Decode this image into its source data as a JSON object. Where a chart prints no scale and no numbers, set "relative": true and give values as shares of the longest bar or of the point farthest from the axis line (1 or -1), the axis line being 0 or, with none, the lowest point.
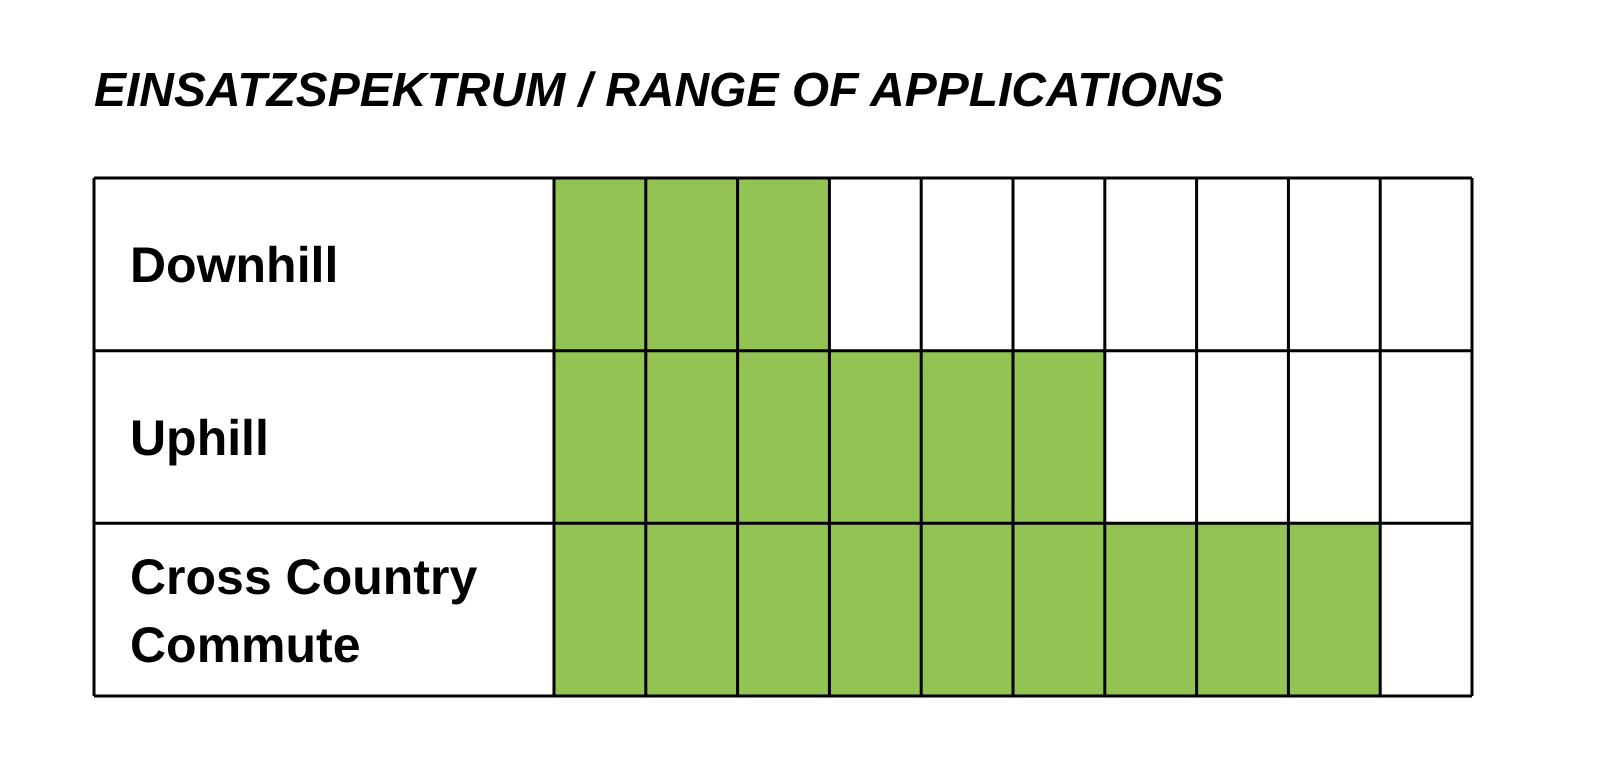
{
  "chart_data": {
    "type": "bar",
    "orientation": "horizontal",
    "relative": true,
    "title": "EINSATZSPEKTRUM / RANGE OF APPLICATIONS",
    "categories": [
      "Downhill",
      "Uphill",
      "Cross Country Commute"
    ],
    "values": [
      0.333,
      0.667,
      1
    ],
    "color": "#92c353"
  }
}
